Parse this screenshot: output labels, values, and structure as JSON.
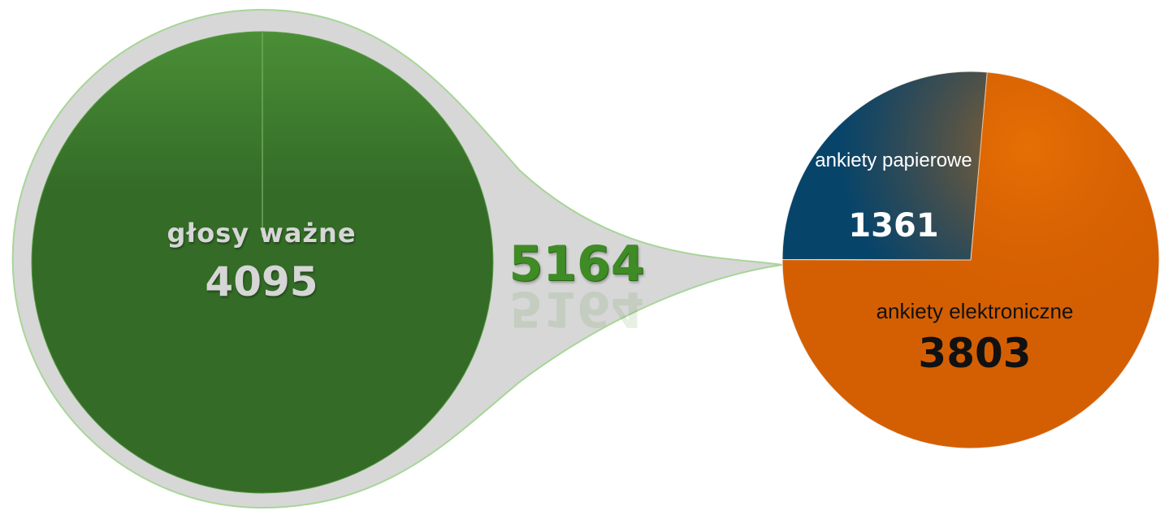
{
  "chart_data": {
    "type": "pie",
    "total": {
      "value": 5164,
      "label": "5164"
    },
    "left_circle": {
      "label": "głosy ważne",
      "value": 4095,
      "value_text": "4095"
    },
    "slices": [
      {
        "label": "ankiety papierowe",
        "value": 1361,
        "value_text": "1361",
        "color": "#07446a"
      },
      {
        "label": "ankiety elektroniczne",
        "value": 3803,
        "value_text": "3803",
        "color": "#d45f02"
      }
    ]
  },
  "colors": {
    "circle_green": "#336b27",
    "circle_green_light": "#4a8e36",
    "circle_outline": "#a8d598",
    "connector_gray": "#d7d7d7",
    "pie_highlight_orange": "#f57c06"
  }
}
